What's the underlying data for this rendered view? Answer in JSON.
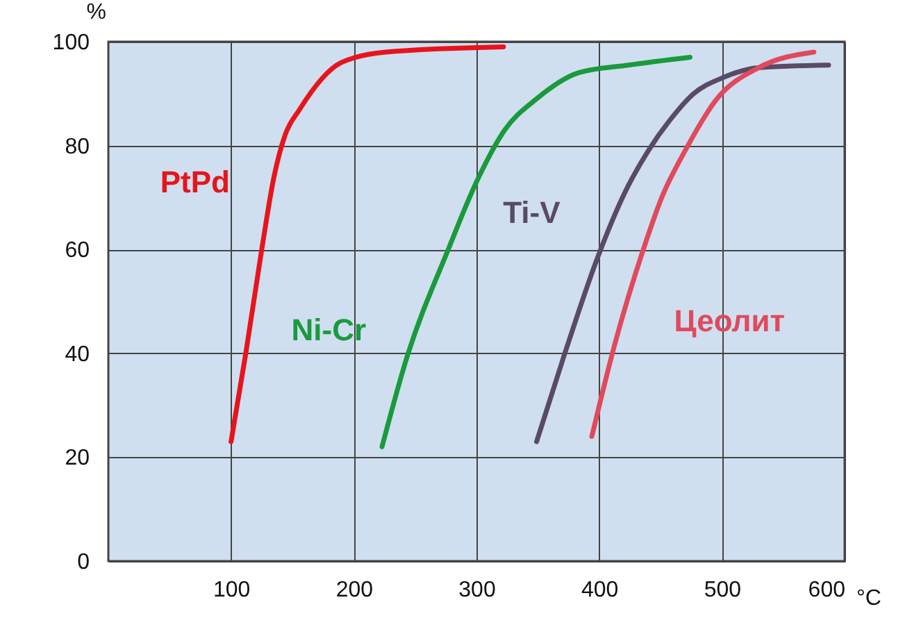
{
  "chart_data": {
    "type": "line",
    "xlabel": "°C",
    "ylabel": "%",
    "xlim": [
      0,
      600
    ],
    "xticks": [
      100,
      200,
      300,
      400,
      500,
      600
    ],
    "ylim": [
      0,
      100
    ],
    "yticks": [
      0,
      20,
      40,
      60,
      80,
      100
    ],
    "grid": true,
    "legend": false,
    "marker": "none",
    "line_style": "solid",
    "series": [
      {
        "name": "PtPd",
        "color": "#e8141b",
        "x": [
          100,
          112,
          125,
          135,
          144,
          156,
          190,
          226,
          322
        ],
        "values": [
          23,
          40,
          60,
          74,
          82,
          87,
          96,
          98,
          99
        ]
      },
      {
        "name": "Ni-Cr",
        "color": "#1a9a3c",
        "x": [
          223,
          243,
          277,
          300,
          323,
          349,
          383,
          424,
          474
        ],
        "values": [
          22,
          39,
          60,
          73,
          83,
          89,
          94,
          95.5,
          97
        ]
      },
      {
        "name": "Ti-V",
        "color": "#5a4a66",
        "x": [
          349,
          372,
          398,
          421,
          440,
          458,
          477,
          500,
          530,
          587
        ],
        "values": [
          23,
          40,
          58,
          71,
          79,
          85,
          90,
          93,
          95,
          95.5
        ]
      },
      {
        "name": "Цеолит",
        "color": "#e04a5c",
        "x": [
          394,
          413,
          436,
          451,
          470,
          496,
          530,
          575
        ],
        "values": [
          24,
          42,
          60,
          70,
          79,
          89,
          95,
          98
        ]
      }
    ]
  }
}
